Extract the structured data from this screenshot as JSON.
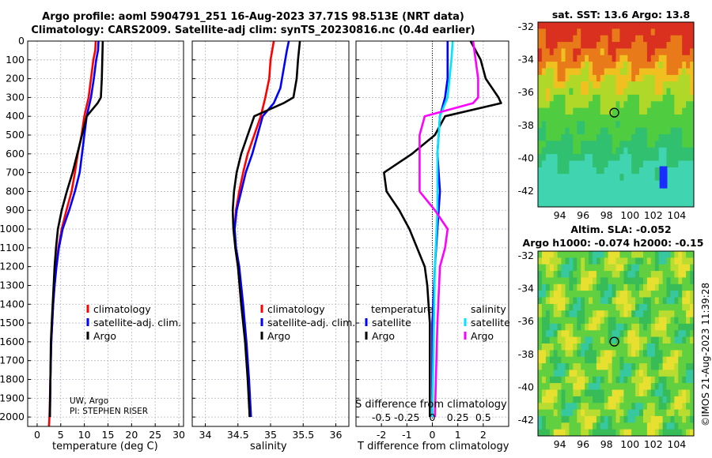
{
  "header": {
    "title_line1": "Argo profile: aoml 5904791_251 16-Aug-2023 37.71S 98.513E (NRT data)",
    "title_line2": "Climatology: CARS2009. Satellite-adj clim: synTS_20230816.nc (0.4d earlier)"
  },
  "colors": {
    "climatology": "#ff0000",
    "satellite": "#0000ff",
    "argo": "#000000",
    "sat_salinity": "#00e5ff",
    "argo_salinity": "#ff00ff"
  },
  "chart_data": [
    {
      "type": "line",
      "name": "temperature-profile",
      "xlabel": "temperature (deg C)",
      "xlim": [
        -2,
        31
      ],
      "xticks": [
        0,
        5,
        10,
        15,
        20,
        25,
        30
      ],
      "yticks": [
        0,
        100,
        200,
        300,
        400,
        500,
        600,
        700,
        800,
        900,
        1000,
        1100,
        1200,
        1300,
        1400,
        1500,
        1600,
        1700,
        1800,
        1900,
        2000
      ],
      "ylim": [
        0,
        2050
      ],
      "legend": [
        "climatology",
        "satellite-adj. clim.",
        "Argo"
      ],
      "series": [
        {
          "name": "climatology",
          "color": "#ff0000",
          "points": [
            [
              12.4,
              0
            ],
            [
              12.3,
              50
            ],
            [
              11.9,
              100
            ],
            [
              11.4,
              200
            ],
            [
              10.9,
              300
            ],
            [
              10.0,
              400
            ],
            [
              9.4,
              500
            ],
            [
              8.6,
              600
            ],
            [
              8.0,
              700
            ],
            [
              7.3,
              800
            ],
            [
              6.2,
              900
            ],
            [
              5.2,
              1000
            ],
            [
              4.5,
              1100
            ],
            [
              4.0,
              1200
            ],
            [
              3.7,
              1300
            ],
            [
              3.4,
              1400
            ],
            [
              3.2,
              1500
            ],
            [
              3.0,
              1600
            ],
            [
              2.8,
              1800
            ],
            [
              2.6,
              2000
            ],
            [
              2.5,
              2050
            ]
          ]
        },
        {
          "name": "satellite-adj. clim.",
          "color": "#0000ff",
          "points": [
            [
              13.0,
              0
            ],
            [
              12.9,
              50
            ],
            [
              12.5,
              100
            ],
            [
              12.0,
              200
            ],
            [
              11.4,
              300
            ],
            [
              10.5,
              400
            ],
            [
              10.0,
              500
            ],
            [
              9.5,
              600
            ],
            [
              9.0,
              700
            ],
            [
              8.0,
              800
            ],
            [
              6.8,
              900
            ],
            [
              5.4,
              1000
            ],
            [
              4.6,
              1100
            ],
            [
              4.1,
              1200
            ],
            [
              3.7,
              1300
            ],
            [
              3.4,
              1400
            ],
            [
              3.2,
              1500
            ],
            [
              3.0,
              1600
            ],
            [
              2.8,
              1800
            ],
            [
              2.7,
              2000
            ]
          ]
        },
        {
          "name": "Argo",
          "color": "#000000",
          "points": [
            [
              13.9,
              0
            ],
            [
              13.8,
              100
            ],
            [
              13.7,
              200
            ],
            [
              13.5,
              300
            ],
            [
              12.8,
              330
            ],
            [
              10.5,
              400
            ],
            [
              9.5,
              500
            ],
            [
              8.5,
              600
            ],
            [
              7.5,
              700
            ],
            [
              6.3,
              800
            ],
            [
              5.2,
              900
            ],
            [
              4.4,
              1000
            ],
            [
              4.0,
              1100
            ],
            [
              3.7,
              1200
            ],
            [
              3.5,
              1300
            ],
            [
              3.3,
              1400
            ],
            [
              3.1,
              1500
            ],
            [
              2.9,
              1600
            ],
            [
              2.8,
              1800
            ],
            [
              2.7,
              2000
            ]
          ]
        }
      ],
      "annotation_lines": [
        "UW, Argo",
        "PI: STEPHEN RISER"
      ]
    },
    {
      "type": "line",
      "name": "salinity-profile",
      "xlabel": "salinity",
      "xlim": [
        33.8,
        36.2
      ],
      "xticks": [
        34,
        34.5,
        35,
        35.5,
        36
      ],
      "legend": [
        "climatology",
        "satellite-adj. clim.",
        "Argo"
      ],
      "series": [
        {
          "name": "climatology",
          "color": "#ff0000",
          "points": [
            [
              35.05,
              0
            ],
            [
              35.0,
              100
            ],
            [
              34.98,
              200
            ],
            [
              34.92,
              300
            ],
            [
              34.85,
              400
            ],
            [
              34.75,
              500
            ],
            [
              34.65,
              600
            ],
            [
              34.58,
              700
            ],
            [
              34.52,
              800
            ],
            [
              34.47,
              900
            ],
            [
              34.45,
              1000
            ],
            [
              34.46,
              1100
            ],
            [
              34.5,
              1200
            ],
            [
              34.55,
              1400
            ],
            [
              34.62,
              1600
            ],
            [
              34.66,
              1800
            ],
            [
              34.68,
              2000
            ]
          ]
        },
        {
          "name": "satellite-adj. clim.",
          "color": "#0000ff",
          "points": [
            [
              35.28,
              0
            ],
            [
              35.25,
              50
            ],
            [
              35.2,
              150
            ],
            [
              35.15,
              250
            ],
            [
              35.05,
              330
            ],
            [
              34.88,
              400
            ],
            [
              34.8,
              500
            ],
            [
              34.72,
              600
            ],
            [
              34.62,
              700
            ],
            [
              34.55,
              800
            ],
            [
              34.48,
              900
            ],
            [
              34.45,
              1000
            ],
            [
              34.47,
              1100
            ],
            [
              34.52,
              1200
            ],
            [
              34.58,
              1400
            ],
            [
              34.63,
              1600
            ],
            [
              34.67,
              1800
            ],
            [
              34.7,
              2000
            ]
          ]
        },
        {
          "name": "Argo",
          "color": "#000000",
          "points": [
            [
              35.45,
              0
            ],
            [
              35.42,
              100
            ],
            [
              35.4,
              200
            ],
            [
              35.35,
              300
            ],
            [
              35.2,
              330
            ],
            [
              34.75,
              400
            ],
            [
              34.65,
              500
            ],
            [
              34.55,
              600
            ],
            [
              34.48,
              700
            ],
            [
              34.44,
              800
            ],
            [
              34.42,
              900
            ],
            [
              34.43,
              1000
            ],
            [
              34.46,
              1100
            ],
            [
              34.5,
              1200
            ],
            [
              34.55,
              1400
            ],
            [
              34.61,
              1600
            ],
            [
              34.65,
              1800
            ],
            [
              34.68,
              2000
            ]
          ]
        }
      ]
    },
    {
      "type": "line",
      "name": "difference-profile",
      "xlabel": "T difference from climatology",
      "xlabel_top": "S difference from climatology",
      "xlim": [
        -3,
        3
      ],
      "xticks": [
        -2,
        -1,
        0,
        1,
        2
      ],
      "xticks_top": [
        "-0.5",
        "-0.25",
        "0",
        "0.25",
        "0.5"
      ],
      "legend_temperature_title": "temperature",
      "legend_salinity_title": "salinity",
      "legend_temperature": [
        "satellite",
        "Argo"
      ],
      "legend_salinity": [
        "satellite",
        "Argo"
      ],
      "series": [
        {
          "name": "temperature satellite",
          "color": "#0000ff",
          "points": [
            [
              0.6,
              0
            ],
            [
              0.6,
              100
            ],
            [
              0.6,
              200
            ],
            [
              0.5,
              300
            ],
            [
              0.3,
              400
            ],
            [
              0.2,
              600
            ],
            [
              0.3,
              800
            ],
            [
              0.2,
              1000
            ],
            [
              0.1,
              1200
            ],
            [
              0.0,
              1500
            ],
            [
              0.0,
              2000
            ]
          ]
        },
        {
          "name": "temperature Argo",
          "color": "#000000",
          "points": [
            [
              1.5,
              0
            ],
            [
              1.9,
              100
            ],
            [
              2.1,
              200
            ],
            [
              2.6,
              300
            ],
            [
              2.7,
              330
            ],
            [
              0.5,
              400
            ],
            [
              0.1,
              500
            ],
            [
              -0.8,
              600
            ],
            [
              -1.9,
              700
            ],
            [
              -1.8,
              800
            ],
            [
              -1.3,
              900
            ],
            [
              -0.9,
              1000
            ],
            [
              -0.6,
              1100
            ],
            [
              -0.3,
              1200
            ],
            [
              -0.2,
              1300
            ],
            [
              -0.1,
              1500
            ],
            [
              -0.1,
              2000
            ]
          ]
        },
        {
          "name": "salinity satellite",
          "color": "#00e5ff",
          "points": [
            [
              0.8,
              0
            ],
            [
              0.75,
              100
            ],
            [
              0.6,
              300
            ],
            [
              0.3,
              400
            ],
            [
              0.2,
              600
            ],
            [
              0.2,
              900
            ],
            [
              0.1,
              1200
            ],
            [
              0.05,
              1600
            ],
            [
              0.0,
              2000
            ]
          ]
        },
        {
          "name": "salinity Argo",
          "color": "#ff00ff",
          "points": [
            [
              1.6,
              0
            ],
            [
              1.7,
              100
            ],
            [
              1.8,
              200
            ],
            [
              1.8,
              300
            ],
            [
              1.6,
              330
            ],
            [
              -0.3,
              400
            ],
            [
              -0.5,
              500
            ],
            [
              -0.5,
              800
            ],
            [
              0.1,
              900
            ],
            [
              0.6,
              1000
            ],
            [
              0.5,
              1100
            ],
            [
              0.3,
              1200
            ],
            [
              0.2,
              1500
            ],
            [
              0.1,
              2000
            ]
          ]
        }
      ]
    }
  ],
  "maps": {
    "sst": {
      "title": "sat. SST: 13.6 Argo: 13.8",
      "yticks": [
        "-32",
        "-34",
        "-36",
        "-38",
        "-40",
        "-42"
      ],
      "xticks": [
        "94",
        "96",
        "98",
        "100",
        "102",
        "104"
      ]
    },
    "sla": {
      "title_line1": "Altim. SLA: -0.052",
      "title_line2": "Argo h1000: -0.074 h2000: -0.15",
      "yticks": [
        "-32",
        "-34",
        "-36",
        "-38",
        "-40",
        "-42"
      ],
      "xticks": [
        "94",
        "96",
        "98",
        "100",
        "102",
        "104"
      ]
    }
  },
  "credit": "©IMOS 21-Aug-2023 11:39:28"
}
